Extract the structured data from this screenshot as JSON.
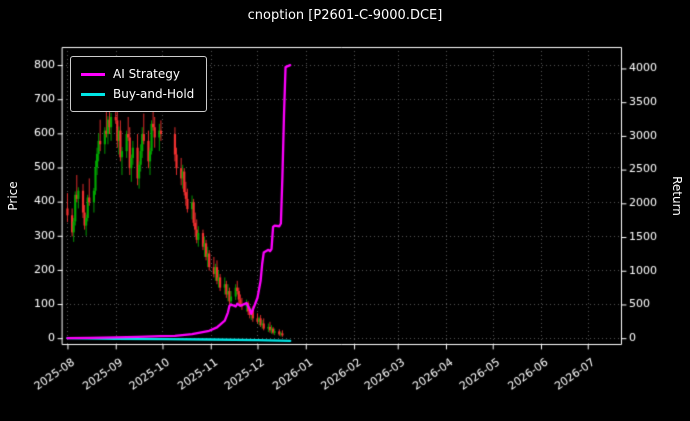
{
  "chart_data": {
    "type": "candlestick",
    "title": "cnoption [P2601-C-9000.DCE]",
    "background": "#000000",
    "text_color": "#ffffff",
    "grid": "dotted",
    "grid_color": "#6f6f6f",
    "left_axis": {
      "label": "Price",
      "min": 0,
      "max": 800,
      "step": 100
    },
    "right_axis": {
      "label": "Return",
      "min": 0,
      "max": 4000,
      "step": 500
    },
    "x_tick_labels": [
      "2025-08",
      "2025-09",
      "2025-10",
      "2025-11",
      "2025-12",
      "2026-01",
      "2026-02",
      "2026-03",
      "2026-04",
      "2026-05",
      "2026-06",
      "2026-07"
    ],
    "candles": {
      "up_color": "#00a600",
      "down_color": "#f03030",
      "data": [
        [
          "2025-08-01",
          380,
          425,
          340,
          360
        ],
        [
          "2025-08-04",
          360,
          380,
          298,
          310
        ],
        [
          "2025-08-05",
          310,
          352,
          282,
          342
        ],
        [
          "2025-08-06",
          342,
          430,
          330,
          420
        ],
        [
          "2025-08-07",
          420,
          478,
          398,
          408
        ],
        [
          "2025-08-08",
          408,
          442,
          380,
          432
        ],
        [
          "2025-08-11",
          432,
          452,
          352,
          368
        ],
        [
          "2025-08-12",
          368,
          390,
          318,
          330
        ],
        [
          "2025-08-13",
          330,
          362,
          300,
          352
        ],
        [
          "2025-08-14",
          352,
          420,
          342,
          412
        ],
        [
          "2025-08-15",
          412,
          468,
          388,
          398
        ],
        [
          "2025-08-18",
          398,
          440,
          368,
          432
        ],
        [
          "2025-08-19",
          432,
          520,
          420,
          500
        ],
        [
          "2025-08-20",
          500,
          558,
          478,
          540
        ],
        [
          "2025-08-21",
          540,
          600,
          518,
          578
        ],
        [
          "2025-08-22",
          578,
          640,
          548,
          568
        ],
        [
          "2025-08-25",
          568,
          618,
          540,
          608
        ],
        [
          "2025-08-26",
          608,
          678,
          588,
          598
        ],
        [
          "2025-08-27",
          598,
          650,
          568,
          640
        ],
        [
          "2025-08-28",
          640,
          672,
          598,
          618
        ],
        [
          "2025-08-29",
          618,
          660,
          578,
          648
        ],
        [
          "2025-09-01",
          648,
          692,
          628,
          638
        ],
        [
          "2025-09-02",
          638,
          688,
          558,
          578
        ],
        [
          "2025-09-03",
          578,
          620,
          538,
          608
        ],
        [
          "2025-09-04",
          608,
          638,
          518,
          530
        ],
        [
          "2025-09-05",
          530,
          560,
          478,
          548
        ],
        [
          "2025-09-08",
          548,
          608,
          528,
          598
        ],
        [
          "2025-09-09",
          598,
          648,
          578,
          588
        ],
        [
          "2025-09-10",
          588,
          618,
          478,
          498
        ],
        [
          "2025-09-11",
          498,
          538,
          458,
          528
        ],
        [
          "2025-09-12",
          528,
          578,
          508,
          558
        ],
        [
          "2025-09-15",
          558,
          598,
          448,
          468
        ],
        [
          "2025-09-16",
          468,
          518,
          438,
          508
        ],
        [
          "2025-09-17",
          508,
          568,
          488,
          548
        ],
        [
          "2025-09-18",
          548,
          618,
          528,
          598
        ],
        [
          "2025-09-19",
          598,
          658,
          568,
          578
        ],
        [
          "2025-09-22",
          578,
          608,
          498,
          518
        ],
        [
          "2025-09-23",
          518,
          558,
          478,
          548
        ],
        [
          "2025-09-24",
          548,
          638,
          538,
          628
        ],
        [
          "2025-09-25",
          628,
          678,
          608,
          618
        ],
        [
          "2025-09-26",
          618,
          648,
          558,
          588
        ],
        [
          "2025-09-29",
          588,
          628,
          548,
          608
        ],
        [
          "2025-09-30",
          608,
          638,
          578,
          598
        ],
        [
          "2025-10-09",
          598,
          618,
          518,
          538
        ],
        [
          "2025-10-10",
          538,
          558,
          478,
          498
        ],
        [
          "2025-10-13",
          498,
          528,
          448,
          468
        ],
        [
          "2025-10-14",
          468,
          508,
          438,
          488
        ],
        [
          "2025-10-15",
          488,
          498,
          418,
          428
        ],
        [
          "2025-10-16",
          428,
          458,
          388,
          408
        ],
        [
          "2025-10-17",
          408,
          438,
          368,
          378
        ],
        [
          "2025-10-20",
          378,
          418,
          348,
          398
        ],
        [
          "2025-10-21",
          398,
          408,
          328,
          338
        ],
        [
          "2025-10-22",
          338,
          368,
          298,
          318
        ],
        [
          "2025-10-23",
          318,
          348,
          278,
          288
        ],
        [
          "2025-10-24",
          288,
          328,
          268,
          308
        ],
        [
          "2025-10-27",
          308,
          318,
          258,
          268
        ],
        [
          "2025-10-28",
          268,
          298,
          238,
          278
        ],
        [
          "2025-10-29",
          278,
          288,
          228,
          238
        ],
        [
          "2025-10-30",
          238,
          268,
          208,
          248
        ],
        [
          "2025-10-31",
          248,
          258,
          198,
          208
        ],
        [
          "2025-11-03",
          208,
          238,
          178,
          188
        ],
        [
          "2025-11-04",
          188,
          218,
          168,
          208
        ],
        [
          "2025-11-05",
          208,
          228,
          158,
          168
        ],
        [
          "2025-11-06",
          168,
          198,
          148,
          178
        ],
        [
          "2025-11-07",
          178,
          188,
          138,
          148
        ],
        [
          "2025-11-10",
          148,
          178,
          128,
          158
        ],
        [
          "2025-11-11",
          158,
          168,
          118,
          128
        ],
        [
          "2025-11-12",
          128,
          158,
          108,
          138
        ],
        [
          "2025-11-13",
          138,
          148,
          98,
          108
        ],
        [
          "2025-11-14",
          108,
          138,
          92,
          122
        ],
        [
          "2025-11-17",
          122,
          158,
          112,
          148
        ],
        [
          "2025-11-18",
          148,
          168,
          128,
          138
        ],
        [
          "2025-11-19",
          138,
          148,
          103,
          113
        ],
        [
          "2025-11-20",
          113,
          128,
          93,
          98
        ],
        [
          "2025-11-21",
          98,
          118,
          83,
          93
        ],
        [
          "2025-11-24",
          93,
          113,
          78,
          103
        ],
        [
          "2025-11-25",
          103,
          108,
          68,
          78
        ],
        [
          "2025-11-26",
          78,
          93,
          58,
          68
        ],
        [
          "2025-11-27",
          68,
          88,
          53,
          83
        ],
        [
          "2025-11-28",
          83,
          93,
          48,
          58
        ],
        [
          "2025-12-01",
          58,
          73,
          43,
          48
        ],
        [
          "2025-12-02",
          48,
          63,
          38,
          58
        ],
        [
          "2025-12-03",
          58,
          68,
          33,
          38
        ],
        [
          "2025-12-04",
          38,
          53,
          28,
          43
        ],
        [
          "2025-12-05",
          43,
          58,
          23,
          28
        ],
        [
          "2025-12-08",
          28,
          43,
          18,
          33
        ],
        [
          "2025-12-09",
          33,
          48,
          16,
          23
        ],
        [
          "2025-12-10",
          23,
          38,
          13,
          28
        ],
        [
          "2025-12-11",
          28,
          33,
          11,
          16
        ],
        [
          "2025-12-12",
          16,
          28,
          9,
          20
        ],
        [
          "2025-12-15",
          20,
          26,
          7,
          11
        ],
        [
          "2025-12-16",
          11,
          19,
          5,
          14
        ],
        [
          "2025-12-17",
          14,
          23,
          4,
          8
        ]
      ]
    },
    "series": [
      {
        "name": "AI Strategy",
        "axis": "right",
        "color": "#ff00ff",
        "points": [
          [
            "2025-08-01",
            0
          ],
          [
            "2025-08-15",
            5
          ],
          [
            "2025-09-01",
            12
          ],
          [
            "2025-09-15",
            20
          ],
          [
            "2025-09-30",
            30
          ],
          [
            "2025-10-09",
            35
          ],
          [
            "2025-10-20",
            60
          ],
          [
            "2025-10-31",
            110
          ],
          [
            "2025-11-05",
            160
          ],
          [
            "2025-11-10",
            260
          ],
          [
            "2025-11-12",
            380
          ],
          [
            "2025-11-13",
            480
          ],
          [
            "2025-11-14",
            500
          ],
          [
            "2025-11-17",
            470
          ],
          [
            "2025-11-18",
            510
          ],
          [
            "2025-11-20",
            480
          ],
          [
            "2025-11-24",
            520
          ],
          [
            "2025-11-26",
            430
          ],
          [
            "2025-11-27",
            360
          ],
          [
            "2025-11-28",
            420
          ],
          [
            "2025-12-01",
            600
          ],
          [
            "2025-12-03",
            850
          ],
          [
            "2025-12-04",
            1100
          ],
          [
            "2025-12-05",
            1270
          ],
          [
            "2025-12-08",
            1310
          ],
          [
            "2025-12-09",
            1290
          ],
          [
            "2025-12-10",
            1320
          ],
          [
            "2025-12-11",
            1650
          ],
          [
            "2025-12-12",
            1670
          ],
          [
            "2025-12-15",
            1660
          ],
          [
            "2025-12-16",
            1700
          ],
          [
            "2025-12-17",
            2400
          ],
          [
            "2025-12-18",
            3300
          ],
          [
            "2025-12-19",
            4020
          ],
          [
            "2025-12-22",
            4050
          ]
        ]
      },
      {
        "name": "Buy-and-Hold",
        "axis": "right",
        "color": "#00e6e6",
        "points": [
          [
            "2025-08-01",
            0
          ],
          [
            "2025-09-01",
            -10
          ],
          [
            "2025-10-01",
            -15
          ],
          [
            "2025-11-01",
            -20
          ],
          [
            "2025-12-01",
            -30
          ],
          [
            "2025-12-22",
            -40
          ]
        ]
      }
    ]
  }
}
